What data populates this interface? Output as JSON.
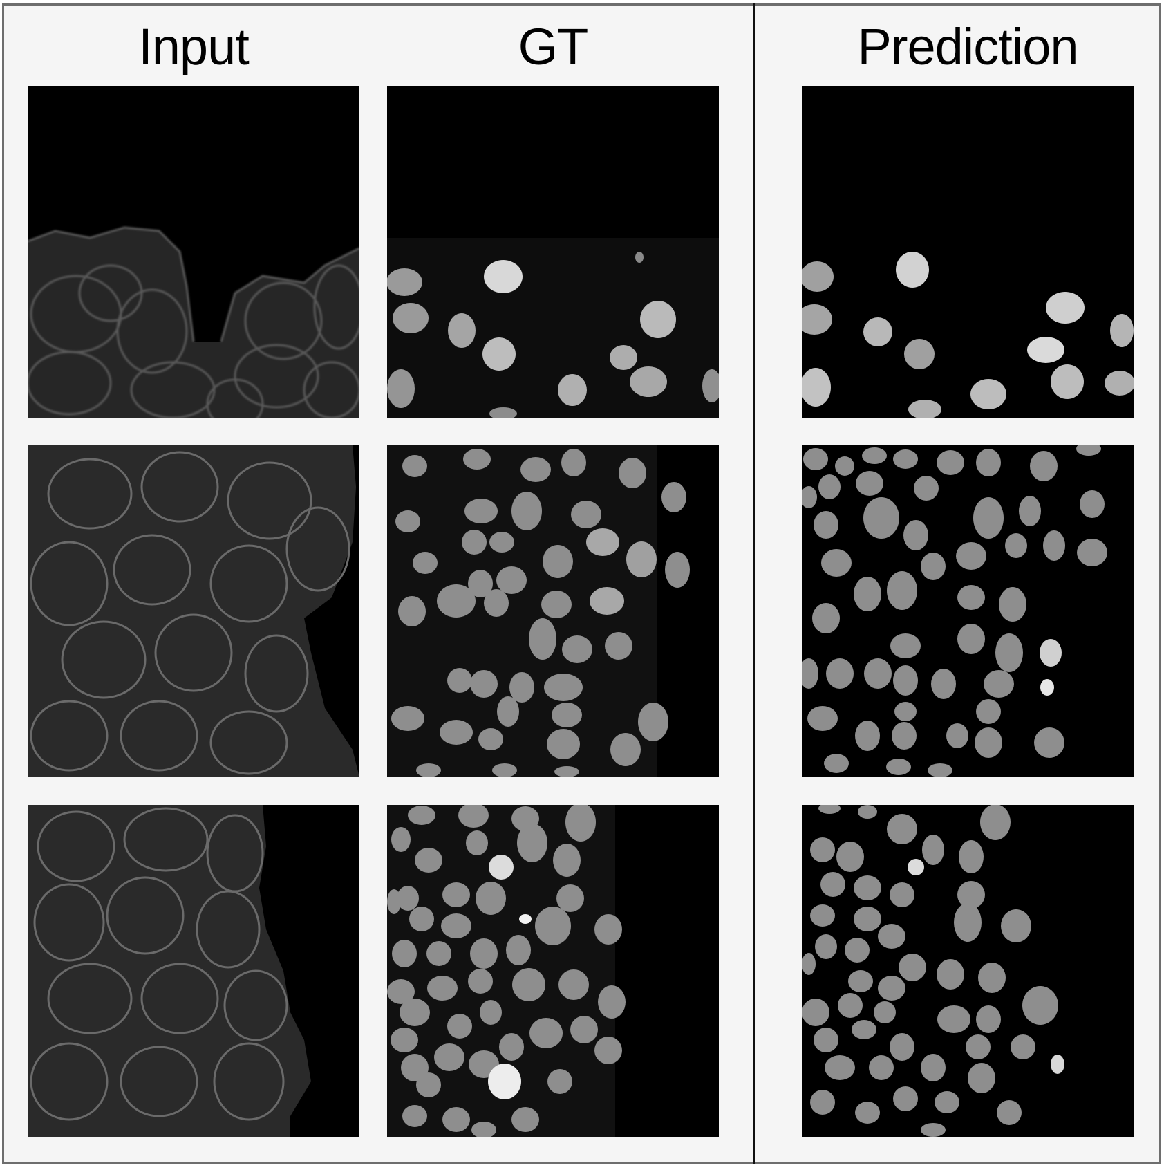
{
  "figure": {
    "columns": [
      {
        "id": "input",
        "title": "Input"
      },
      {
        "id": "gt",
        "title": "GT"
      },
      {
        "id": "prediction",
        "title": "Prediction"
      }
    ],
    "rows": 3,
    "colors": {
      "panel_background": "#000000",
      "figure_background": "#f5f5f5",
      "border": "#6e6e6e",
      "divider": "#111111"
    },
    "panel_content": {
      "input": "membrane stain (cell outlines)",
      "gt": "nuclei",
      "prediction": "nuclei"
    }
  }
}
